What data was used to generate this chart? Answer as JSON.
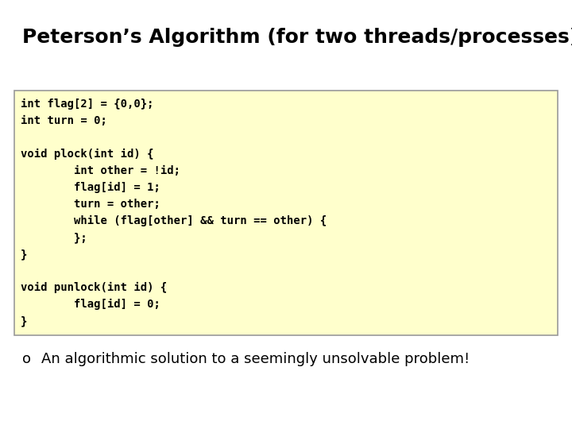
{
  "title": "Peterson’s Algorithm (for two threads/processes)",
  "title_fontsize": 18,
  "title_fontweight": "bold",
  "bg_color": "#ffffff",
  "code_box_facecolor": "#ffffcc",
  "code_box_edgecolor": "#999999",
  "code_lines": [
    "int flag[2] = {0,0};",
    "int turn = 0;",
    "",
    "void plock(int id) {",
    "        int other = !id;",
    "        flag[id] = 1;",
    "        turn = other;",
    "        while (flag[other] && turn == other) {",
    "        };",
    "}",
    "",
    "void punlock(int id) {",
    "        flag[id] = 0;",
    "}"
  ],
  "code_fontsize": 10,
  "bullet_text": "An algorithmic solution to a seemingly unsolvable problem!",
  "bullet_fontsize": 13
}
